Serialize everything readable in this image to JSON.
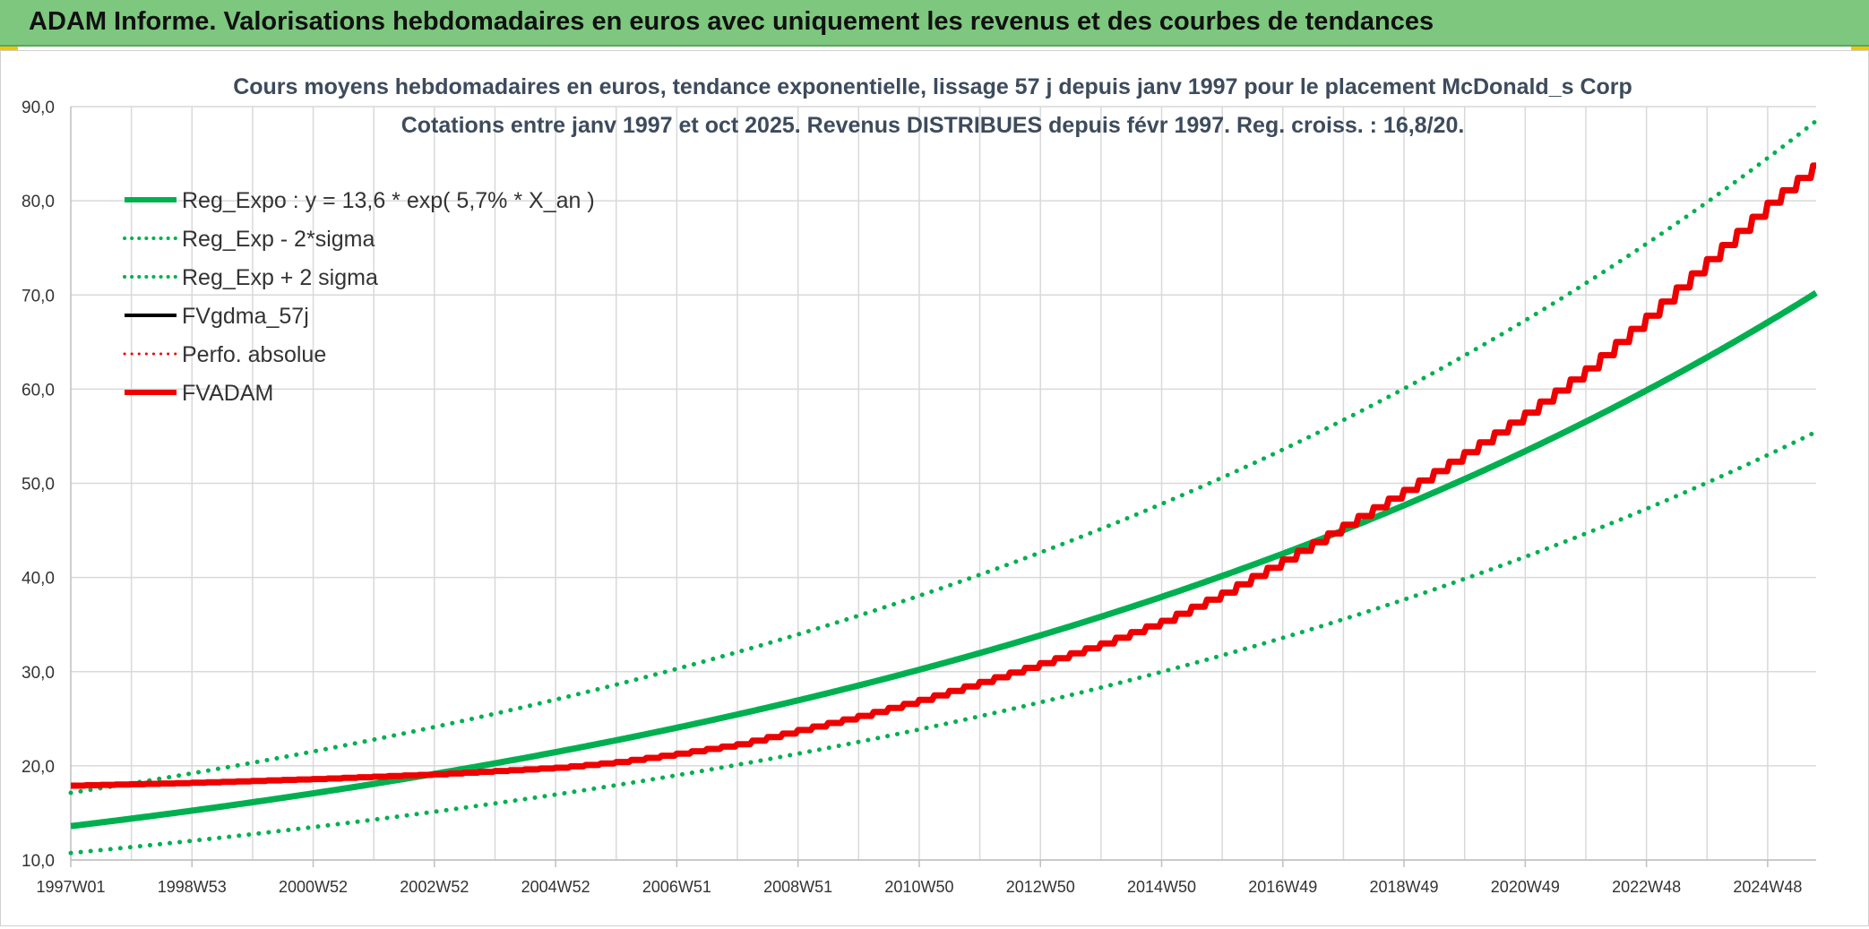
{
  "header": {
    "title": "ADAM Informe. Valorisations hebdomadaires en euros avec uniquement les revenus et des courbes de tendances"
  },
  "colors": {
    "header_bg": "#7dc77e",
    "trend_green": "#00b050",
    "red": "#ee0000",
    "black": "#000000",
    "grid": "#d9d9d9"
  },
  "chart_data": {
    "type": "line",
    "title_line1": "Cours moyens hebdomadaires en euros, tendance exponentielle, lissage 57 j depuis janv 1997 pour le placement McDonald_s Corp",
    "title_line2": "Cotations entre janv 1997 et oct 2025. Revenus DISTRIBUES depuis févr 1997. Reg. croiss. : 16,8/20.",
    "x_range_years": [
      1997.0,
      2025.8
    ],
    "y_range": [
      10,
      90
    ],
    "y_ticks": [
      "10,0",
      "20,0",
      "30,0",
      "40,0",
      "50,0",
      "60,0",
      "70,0",
      "80,0",
      "90,0"
    ],
    "x_ticks": [
      "1997W01",
      "1998W53",
      "2000W52",
      "2002W52",
      "2004W52",
      "2006W51",
      "2008W51",
      "2010W50",
      "2012W50",
      "2014W50",
      "2016W49",
      "2018W49",
      "2020W49",
      "2022W48",
      "2024W48"
    ],
    "x_tick_years": [
      1997.0,
      1999.0,
      2001.0,
      2003.0,
      2005.0,
      2007.0,
      2009.0,
      2011.0,
      2013.0,
      2015.0,
      2017.0,
      2019.0,
      2021.0,
      2023.0,
      2025.0
    ],
    "regression": {
      "a": 13.6,
      "rate": 0.057,
      "lower_factor": 0.79,
      "upper_factor": 1.26
    },
    "legend": [
      {
        "label": "Reg_Expo : y = 13,6 * exp( 5,7% *  X_an )",
        "color": "#00b050",
        "style": "solid",
        "width": 6
      },
      {
        "label": "Reg_Exp - 2*sigma",
        "color": "#00b050",
        "style": "dotted",
        "width": 4
      },
      {
        "label": "Reg_Exp + 2 sigma",
        "color": "#00b050",
        "style": "dotted",
        "width": 4
      },
      {
        "label": "FVgdma_57j",
        "color": "#000000",
        "style": "solid",
        "width": 4
      },
      {
        "label": "Perfo. absolue",
        "color": "#ee0000",
        "style": "dotted",
        "width": 3
      },
      {
        "label": "FVADAM",
        "color": "#ee0000",
        "style": "solid",
        "width": 6
      }
    ],
    "fvadam_points": [
      [
        1997.0,
        17.9
      ],
      [
        1999.0,
        18.2
      ],
      [
        2001.0,
        18.6
      ],
      [
        2003.0,
        19.1
      ],
      [
        2005.0,
        19.8
      ],
      [
        2006.0,
        20.4
      ],
      [
        2007.0,
        21.3
      ],
      [
        2008.0,
        22.3
      ],
      [
        2009.0,
        23.8
      ],
      [
        2010.0,
        25.3
      ],
      [
        2011.0,
        27.0
      ],
      [
        2012.0,
        28.9
      ],
      [
        2013.0,
        30.9
      ],
      [
        2014.0,
        33.0
      ],
      [
        2015.0,
        35.4
      ],
      [
        2016.0,
        38.4
      ],
      [
        2017.0,
        41.9
      ],
      [
        2018.0,
        45.6
      ],
      [
        2019.0,
        49.3
      ],
      [
        2020.0,
        53.3
      ],
      [
        2021.0,
        57.5
      ],
      [
        2022.0,
        62.2
      ],
      [
        2023.0,
        67.8
      ],
      [
        2024.0,
        73.8
      ],
      [
        2025.0,
        79.8
      ],
      [
        2025.8,
        84.0
      ]
    ]
  }
}
